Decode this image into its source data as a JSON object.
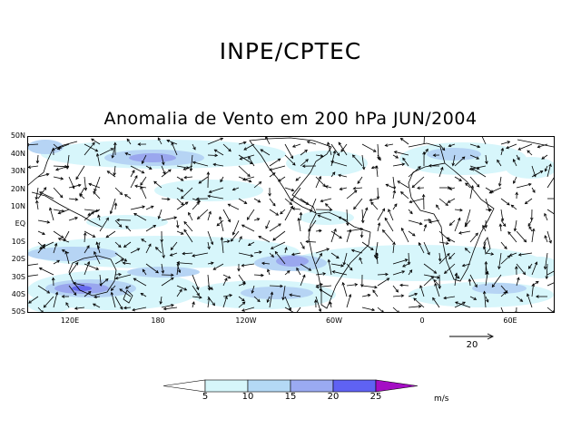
{
  "header": {
    "title": "INPE/CPTEC"
  },
  "map": {
    "title": "Anomalia de Vento em 200 hPa JUN/2004",
    "lat_labels": [
      "50N",
      "40N",
      "30N",
      "20N",
      "10N",
      "EQ",
      "10S",
      "20S",
      "30S",
      "40S",
      "50S"
    ],
    "lon_labels": [
      "120E",
      "180",
      "120W",
      "60W",
      "0",
      "60E"
    ],
    "reference_vector": {
      "magnitude": "20"
    },
    "colorbar": {
      "levels": [
        "5",
        "10",
        "15",
        "20",
        "25"
      ],
      "colors": [
        "#ffffff",
        "#d6f6fa",
        "#b4d9f5",
        "#9aaaf2",
        "#5f62f3",
        "#a40ec4"
      ],
      "units": "m/s"
    },
    "shading_colors": {
      "light": "#d7f6fb",
      "mid": "#b6d4f4",
      "strong": "#9aa7ee",
      "strongest": "#6669ee"
    }
  }
}
